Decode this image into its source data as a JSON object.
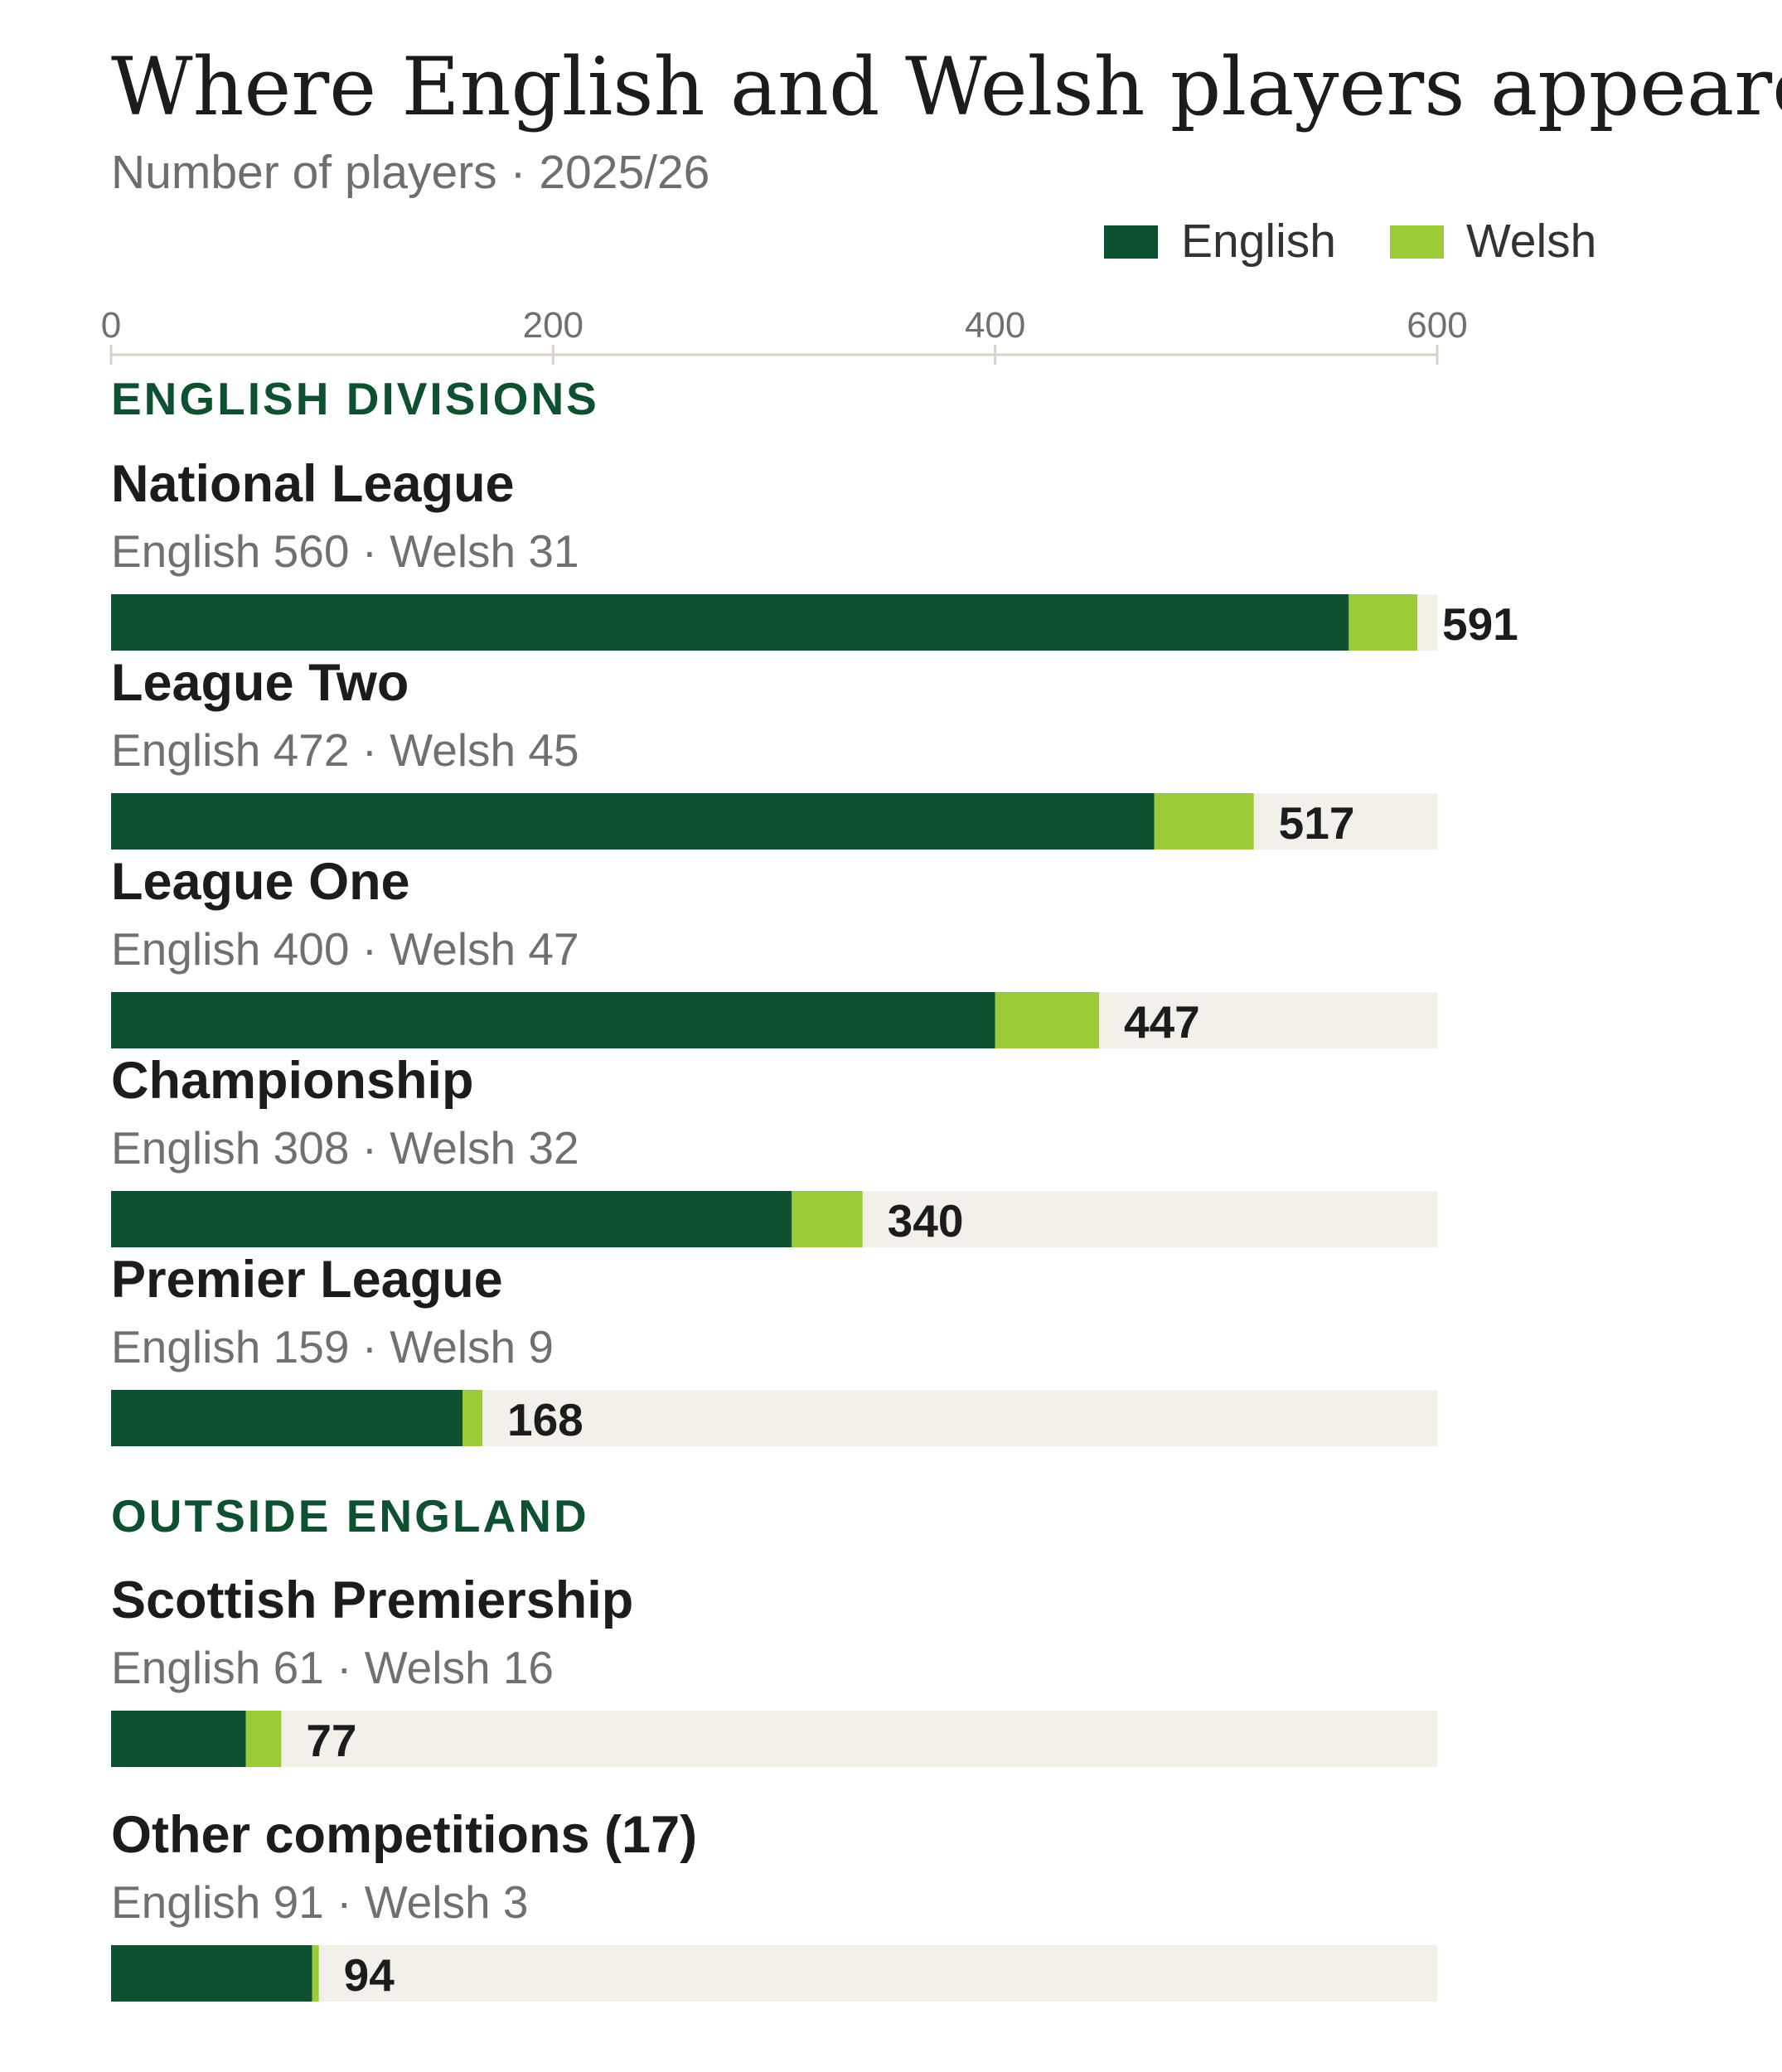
{
  "chart_data": {
    "type": "bar",
    "orientation": "horizontal",
    "stacked": true,
    "title": "Where English and Welsh players appeared",
    "subtitle": "Number of players · 2025/26",
    "xlim": [
      0,
      600
    ],
    "x_ticks": [
      "0",
      "200",
      "400",
      "600"
    ],
    "grid": false,
    "legend_position": "top-right",
    "legend": [
      {
        "name": "English",
        "color": "#0e5130"
      },
      {
        "name": "Welsh",
        "color": "#9bcb35"
      }
    ],
    "track_color": "#f3f0e9",
    "section_color": "#0e5130",
    "sections": [
      {
        "label": "ENGLISH DIVISIONS",
        "rows": [
          {
            "name": "National League",
            "detail": "English 560 · Welsh 31",
            "english": 560,
            "welsh": 31,
            "total": "591"
          },
          {
            "name": "League Two",
            "detail": "English 472 · Welsh 45",
            "english": 472,
            "welsh": 45,
            "total": "517"
          },
          {
            "name": "League One",
            "detail": "English 400 · Welsh 47",
            "english": 400,
            "welsh": 47,
            "total": "447"
          },
          {
            "name": "Championship",
            "detail": "English 308 · Welsh 32",
            "english": 308,
            "welsh": 32,
            "total": "340"
          },
          {
            "name": "Premier League",
            "detail": "English 159 · Welsh 9",
            "english": 159,
            "welsh": 9,
            "total": "168"
          }
        ]
      },
      {
        "label": "OUTSIDE ENGLAND",
        "rows": [
          {
            "name": "Scottish Premiership",
            "detail": "English 61 · Welsh 16",
            "english": 61,
            "welsh": 16,
            "total": "77"
          },
          {
            "name": "Other competitions (17)",
            "detail": "English 91 · Welsh 3",
            "english": 91,
            "welsh": 3,
            "total": "94"
          }
        ]
      }
    ]
  }
}
